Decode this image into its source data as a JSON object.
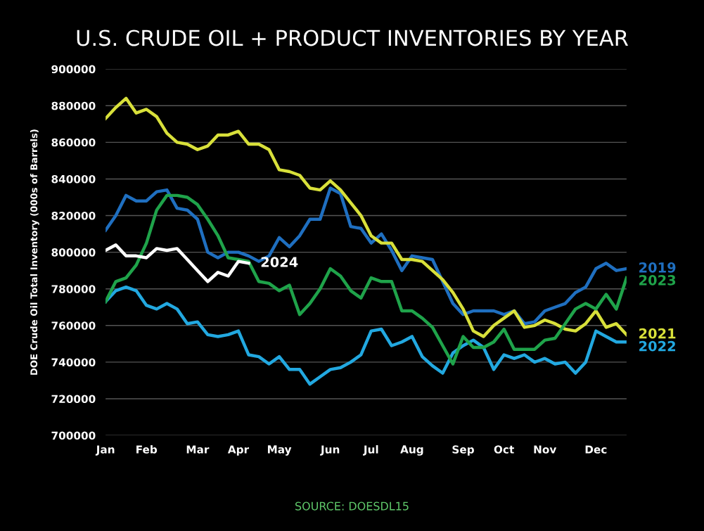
{
  "chart_data": {
    "type": "line",
    "title": "U.S. CRUDE OIL + PRODUCT INVENTORIES BY YEAR",
    "ylabel": "DOE Crude Oil Total Inventory (000s of Barrels)",
    "annotations": [
      "SOURCE: DOESDL15"
    ],
    "categories": [
      "Jan",
      null,
      null,
      null,
      "Feb",
      null,
      null,
      null,
      null,
      "Mar",
      null,
      null,
      null,
      "Apr",
      null,
      null,
      null,
      "May",
      null,
      null,
      null,
      null,
      "Jun",
      null,
      null,
      null,
      "Jul",
      null,
      null,
      null,
      "Aug",
      null,
      null,
      null,
      null,
      "Sep",
      null,
      null,
      null,
      "Oct",
      null,
      null,
      null,
      "Nov",
      null,
      null,
      null,
      null,
      "Dec",
      null,
      null,
      null
    ],
    "ylim": [
      700000,
      900000
    ],
    "yticks": [
      700000,
      720000,
      740000,
      760000,
      780000,
      800000,
      820000,
      840000,
      860000,
      880000,
      900000
    ],
    "grid": "y",
    "legend": false,
    "marker": "none",
    "line_style": "solid",
    "series": [
      {
        "name": "2019",
        "color": "#1f6fc0",
        "values": [
          812000,
          820000,
          831000,
          828000,
          828000,
          833000,
          834000,
          824000,
          823000,
          818000,
          800000,
          797000,
          800000,
          800000,
          798000,
          795000,
          798000,
          808000,
          803000,
          809000,
          818000,
          818000,
          835000,
          832000,
          814000,
          813000,
          805000,
          810000,
          801000,
          790000,
          798000,
          797000,
          796000,
          784000,
          772000,
          766000,
          768000,
          768000,
          768000,
          766000,
          768000,
          761000,
          762000,
          768000,
          770000,
          772000,
          778000,
          781000,
          791000,
          794000,
          790000,
          791000
        ]
      },
      {
        "name": "2021",
        "color": "#d8e03a",
        "values": [
          873000,
          879000,
          884000,
          876000,
          878000,
          874000,
          865000,
          860000,
          859000,
          856000,
          858000,
          864000,
          864000,
          866000,
          859000,
          859000,
          856000,
          845000,
          844000,
          842000,
          835000,
          834000,
          839000,
          834000,
          827000,
          820000,
          809000,
          805000,
          805000,
          796000,
          796000,
          795000,
          790000,
          785000,
          778000,
          769000,
          757000,
          754000,
          760000,
          764000,
          768000,
          759000,
          760000,
          763000,
          761000,
          758000,
          757000,
          761000,
          768000,
          759000,
          761000,
          755000
        ]
      },
      {
        "name": "2022",
        "color": "#22a8e0",
        "values": [
          773000,
          779000,
          781000,
          779000,
          771000,
          769000,
          772000,
          769000,
          761000,
          762000,
          755000,
          754000,
          755000,
          757000,
          744000,
          743000,
          739000,
          743000,
          736000,
          736000,
          728000,
          732000,
          736000,
          737000,
          740000,
          744000,
          757000,
          758000,
          749000,
          751000,
          754000,
          743000,
          738000,
          734000,
          745000,
          749000,
          752000,
          748000,
          736000,
          744000,
          742000,
          744000,
          740000,
          742000,
          739000,
          740000,
          734000,
          740000,
          757000,
          754000,
          751000,
          751000
        ]
      },
      {
        "name": "2023",
        "color": "#1fa34a",
        "values": [
          773000,
          784000,
          786000,
          793000,
          805000,
          823000,
          831000,
          831000,
          830000,
          826000,
          818000,
          809000,
          797000,
          796000,
          795000,
          784000,
          783000,
          779000,
          782000,
          766000,
          772000,
          780000,
          791000,
          787000,
          779000,
          775000,
          786000,
          784000,
          784000,
          768000,
          768000,
          764000,
          759000,
          749000,
          739000,
          754000,
          748000,
          748000,
          751000,
          758000,
          747000,
          747000,
          747000,
          752000,
          753000,
          761000,
          769000,
          772000,
          769000,
          777000,
          769000,
          786000
        ]
      },
      {
        "name": "2024",
        "color": "#ffffff",
        "values": [
          801000,
          804000,
          798000,
          798000,
          797000,
          802000,
          801000,
          802000,
          796000,
          790000,
          784000,
          789000,
          787000,
          795000,
          794000,
          null,
          null,
          null,
          null,
          null,
          null,
          null,
          null,
          null,
          null,
          null,
          null,
          null,
          null,
          null,
          null,
          null,
          null,
          null,
          null,
          null,
          null,
          null,
          null,
          null,
          null,
          null,
          null,
          null,
          null,
          null,
          null,
          null,
          null,
          null,
          null,
          null
        ]
      }
    ]
  }
}
